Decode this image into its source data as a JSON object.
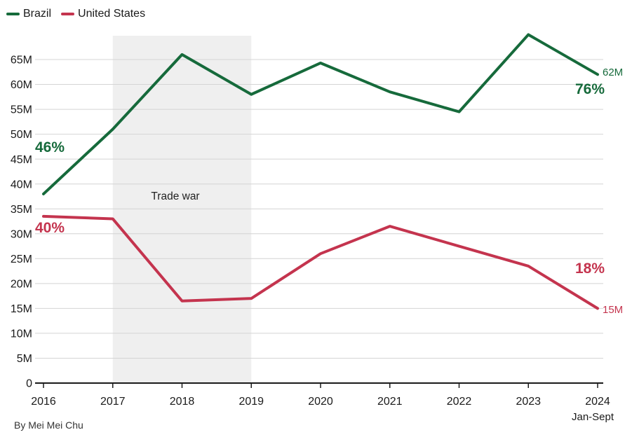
{
  "legend": {
    "items": [
      {
        "label": "Brazil",
        "color": "#166a3b"
      },
      {
        "label": "United States",
        "color": "#c4344e"
      }
    ]
  },
  "chart_data": {
    "type": "line",
    "title": "",
    "x": [
      2016,
      2017,
      2018,
      2019,
      2020,
      2021,
      2022,
      2023,
      2024
    ],
    "x_tick_labels": [
      "2016",
      "2017",
      "2018",
      "2019",
      "2020",
      "2021",
      "2022",
      "2023",
      "2024"
    ],
    "x_sublabel": "Jan-Sept",
    "series": [
      {
        "name": "Brazil",
        "color": "#166a3b",
        "values": [
          38,
          51,
          66,
          58,
          64.3,
          58.5,
          54.5,
          70,
          62
        ]
      },
      {
        "name": "United States",
        "color": "#c4344e",
        "values": [
          33.5,
          33,
          16.5,
          17,
          26,
          31.5,
          27.5,
          23.5,
          15
        ]
      }
    ],
    "y_unit": "M",
    "ylim": [
      0,
      71
    ],
    "y_ticks": [
      0,
      5,
      10,
      15,
      20,
      25,
      30,
      35,
      40,
      45,
      50,
      55,
      60,
      65
    ],
    "y_tick_labels": [
      "0",
      "5M",
      "10M",
      "15M",
      "20M",
      "25M",
      "30M",
      "35M",
      "40M",
      "45M",
      "50M",
      "55M",
      "60M",
      "65M"
    ],
    "grid": true,
    "legend_position": "top-left",
    "shaded_region": {
      "label": "Trade war",
      "x_start": 2017,
      "x_end": 2019,
      "color": "#efefef"
    }
  },
  "annotations": {
    "trade_war": "Trade war",
    "brazil_start_pct": "46%",
    "us_start_pct": "40%",
    "brazil_end_value": "62M",
    "brazil_end_pct": "76%",
    "us_end_pct": "18%",
    "us_end_value": "15M"
  },
  "footer": {
    "byline": "By Mei Mei Chu"
  },
  "colors": {
    "brazil": "#166a3b",
    "united_states": "#c4344e",
    "band": "#efefef",
    "grid": "#d4d4d4",
    "axis": "#1a1a1a"
  }
}
